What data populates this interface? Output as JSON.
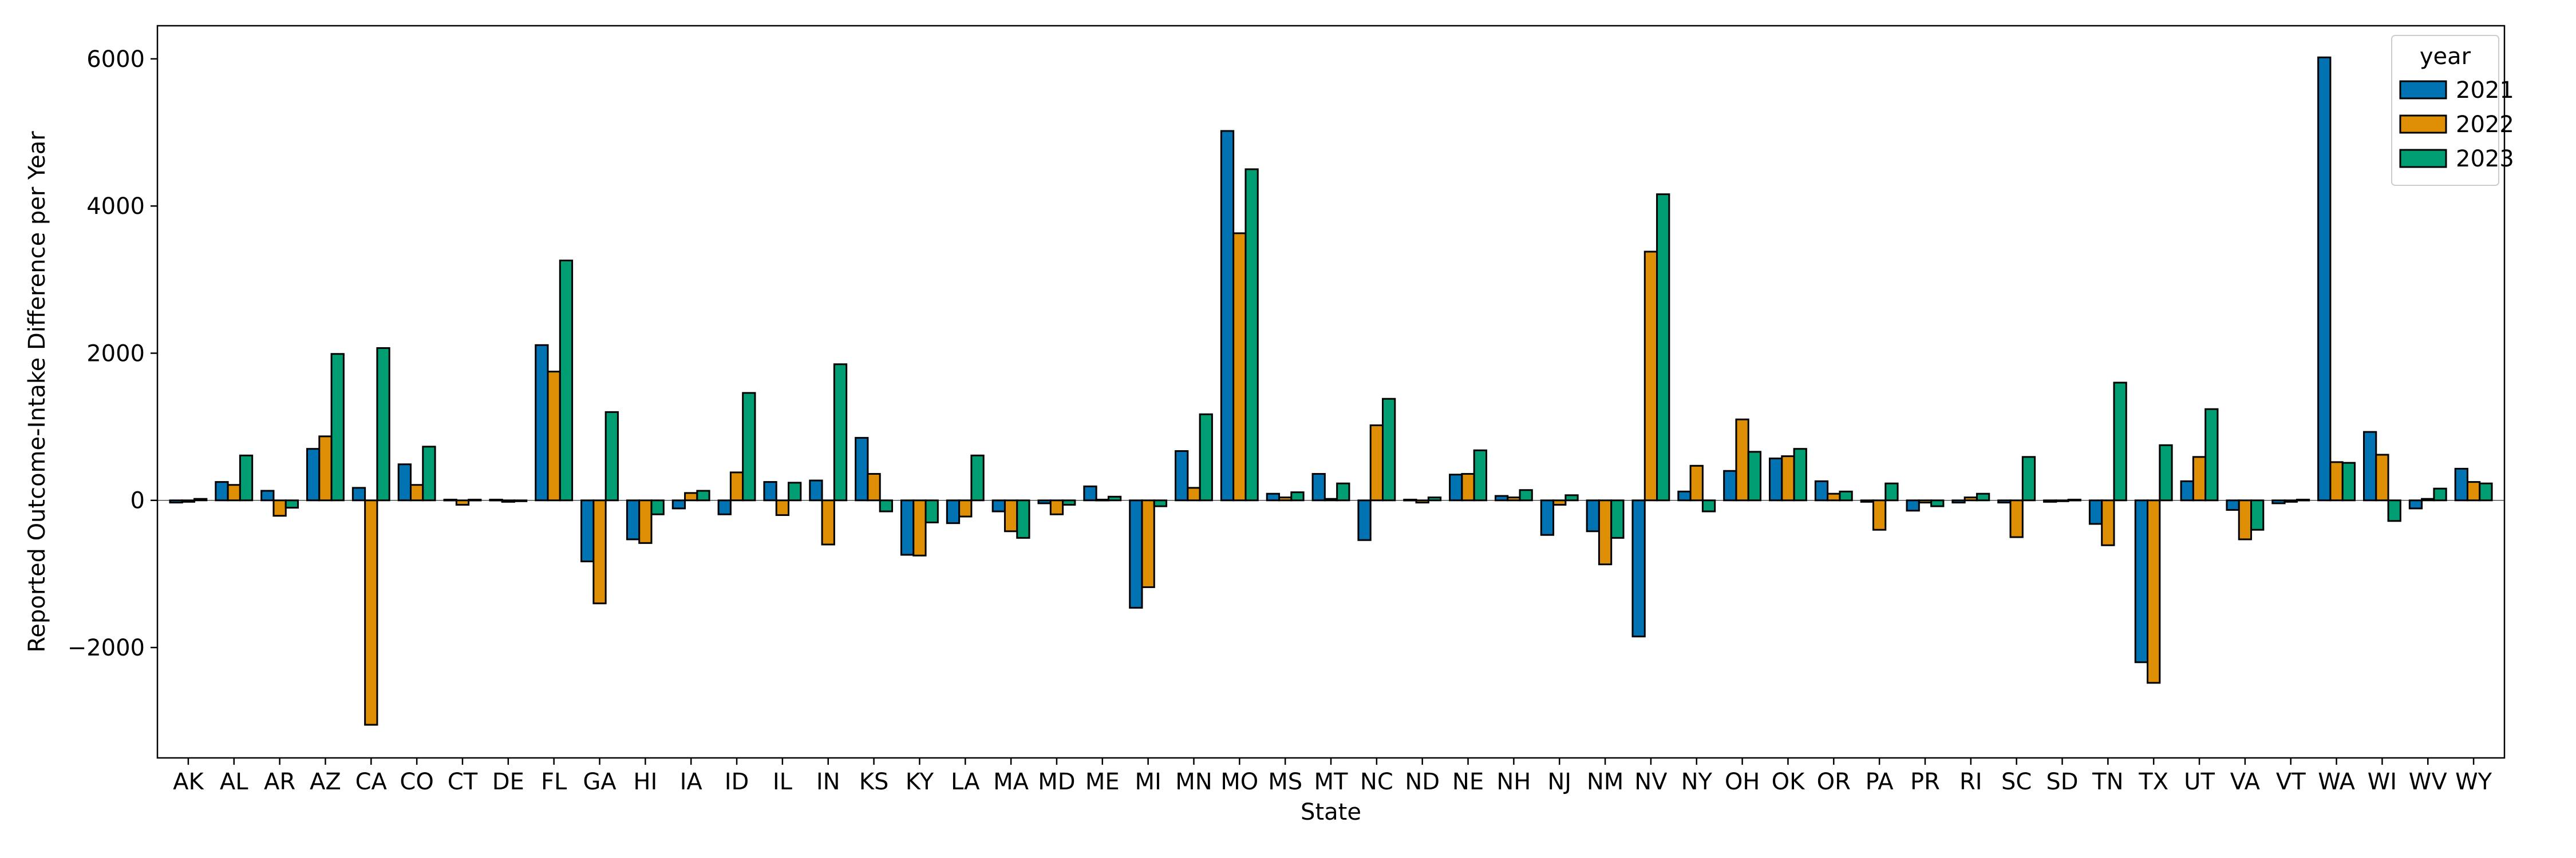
{
  "chart_data": {
    "type": "bar",
    "title": "",
    "xlabel": "State",
    "ylabel": "Reported Outcome-Intake Difference per Year",
    "ylim": [
      -3500,
      6450
    ],
    "yticks": [
      -2000,
      0,
      2000,
      4000,
      6000
    ],
    "grid": false,
    "legend": {
      "title": "year",
      "placement": "top-right"
    },
    "categories": [
      "AK",
      "AL",
      "AR",
      "AZ",
      "CA",
      "CO",
      "CT",
      "DE",
      "FL",
      "GA",
      "HI",
      "IA",
      "ID",
      "IL",
      "IN",
      "KS",
      "KY",
      "LA",
      "MA",
      "MD",
      "ME",
      "MI",
      "MN",
      "MO",
      "MS",
      "MT",
      "NC",
      "ND",
      "NE",
      "NH",
      "NJ",
      "NM",
      "NV",
      "NY",
      "OH",
      "OK",
      "OR",
      "PA",
      "PR",
      "RI",
      "SC",
      "SD",
      "TN",
      "TX",
      "UT",
      "VA",
      "VT",
      "WA",
      "WI",
      "WV",
      "WY"
    ],
    "series": [
      {
        "name": "2021",
        "color": "#0173b2",
        "values": [
          -30,
          250,
          130,
          700,
          170,
          490,
          10,
          10,
          2110,
          -830,
          -530,
          -110,
          -190,
          250,
          270,
          850,
          -740,
          -310,
          -150,
          -40,
          190,
          -1460,
          670,
          5020,
          90,
          360,
          -540,
          10,
          350,
          60,
          -470,
          -420,
          -1850,
          120,
          400,
          570,
          260,
          -20,
          -140,
          -30,
          -30,
          -20,
          -320,
          -2200,
          260,
          -130,
          -40,
          6020,
          930,
          -110,
          430
        ]
      },
      {
        "name": "2022",
        "color": "#de8f05",
        "values": [
          -20,
          210,
          -210,
          870,
          -3050,
          210,
          -60,
          -20,
          1750,
          -1400,
          -580,
          100,
          380,
          -200,
          -600,
          360,
          -750,
          -220,
          -420,
          -190,
          10,
          -1180,
          170,
          3630,
          40,
          20,
          1020,
          -30,
          360,
          40,
          -60,
          -870,
          3380,
          470,
          1100,
          600,
          90,
          -400,
          -30,
          40,
          -500,
          -10,
          -610,
          -2480,
          590,
          -530,
          -20,
          520,
          620,
          20,
          250
        ]
      },
      {
        "name": "2023",
        "color": "#029e73",
        "values": [
          20,
          610,
          -100,
          1990,
          2070,
          730,
          10,
          -10,
          3260,
          1200,
          -190,
          130,
          1460,
          240,
          1850,
          -150,
          -300,
          610,
          -510,
          -60,
          50,
          -80,
          1170,
          4500,
          110,
          230,
          1380,
          40,
          680,
          140,
          70,
          -510,
          4160,
          -150,
          660,
          700,
          120,
          230,
          -80,
          90,
          590,
          10,
          1600,
          750,
          1240,
          -400,
          10,
          510,
          -280,
          160,
          230
        ]
      }
    ]
  }
}
